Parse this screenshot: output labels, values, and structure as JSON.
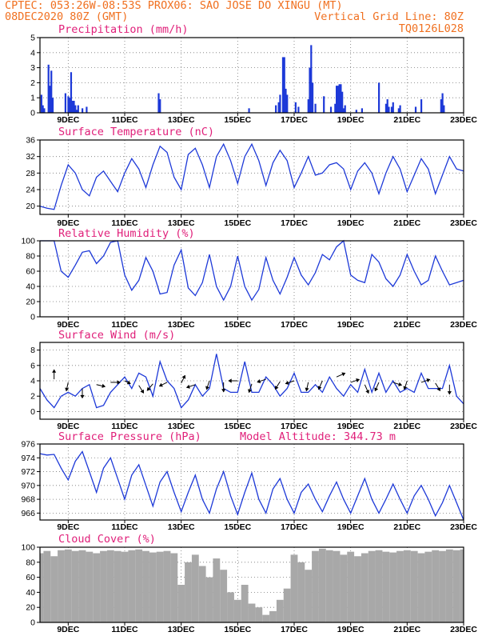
{
  "header": {
    "line1_left": "CPTEC:  053:26W-08:53S  PROX06: SAO JOSE DO XINGU (MT)",
    "line2_left": "08DEC2020 80Z (GMT)",
    "line2_right": "Vertical Grid Line: 80Z",
    "line3_right": "TQ0126L028"
  },
  "colors": {
    "header": "#f07020",
    "panel_title": "#e0207a",
    "line": "#1d39d8",
    "bar": "#1d39d8",
    "cloud": "#a8a8a8",
    "wind_arrow": "#000000"
  },
  "chart_data": [
    {
      "type": "bar",
      "title": "Precipitation (mm/h)",
      "x": [
        8.05,
        8.1,
        8.15,
        8.3,
        8.35,
        8.4,
        8.45,
        8.9,
        9.0,
        9.05,
        9.1,
        9.15,
        9.2,
        9.25,
        9.3,
        9.35,
        9.5,
        9.65,
        12.2,
        12.25,
        15.4,
        16.35,
        16.45,
        16.5,
        16.6,
        16.65,
        16.7,
        16.75,
        17.05,
        17.15,
        17.5,
        17.55,
        17.6,
        17.65,
        17.75,
        18.05,
        18.3,
        18.45,
        18.5,
        18.55,
        18.6,
        18.65,
        18.7,
        18.75,
        18.8,
        19.2,
        19.4,
        20.0,
        20.25,
        20.3,
        20.35,
        20.45,
        20.5,
        20.7,
        20.75,
        21.3,
        21.5,
        22.2,
        22.25,
        22.3
      ],
      "values": [
        1.2,
        0.5,
        0.3,
        3.2,
        1.8,
        2.8,
        1.0,
        1.3,
        1.1,
        1.0,
        2.7,
        0.8,
        0.8,
        0.5,
        0.2,
        0.5,
        0.3,
        0.4,
        1.3,
        0.9,
        0.3,
        0.5,
        0.7,
        1.2,
        3.7,
        3.7,
        1.6,
        1.2,
        0.7,
        0.4,
        0.9,
        3.0,
        4.5,
        2.0,
        0.6,
        1.1,
        0.4,
        0.6,
        1.8,
        1.8,
        1.9,
        1.9,
        1.4,
        0.3,
        0.5,
        0.2,
        0.3,
        2.0,
        0.6,
        0.9,
        0.4,
        0.4,
        0.7,
        0.3,
        0.5,
        0.4,
        0.9,
        0.9,
        1.3,
        0.5
      ],
      "ylim": [
        0,
        5
      ],
      "yticks": [
        0,
        1,
        2,
        3,
        4,
        5
      ]
    },
    {
      "type": "line",
      "title": "Surface Temperature (nC)",
      "x": [
        8.0,
        8.25,
        8.5,
        8.75,
        9.0,
        9.25,
        9.5,
        9.75,
        10.0,
        10.25,
        10.5,
        10.75,
        11.0,
        11.25,
        11.5,
        11.75,
        12.0,
        12.25,
        12.5,
        12.75,
        13.0,
        13.25,
        13.5,
        13.75,
        14.0,
        14.25,
        14.5,
        14.75,
        15.0,
        15.25,
        15.5,
        15.75,
        16.0,
        16.25,
        16.5,
        16.75,
        17.0,
        17.25,
        17.5,
        17.75,
        18.0,
        18.25,
        18.5,
        18.75,
        19.0,
        19.25,
        19.5,
        19.75,
        20.0,
        20.25,
        20.5,
        20.75,
        21.0,
        21.25,
        21.5,
        21.75,
        22.0,
        22.25,
        22.5,
        22.75,
        23.0
      ],
      "values": [
        20.0,
        19.5,
        19.2,
        25.0,
        30.0,
        28.0,
        24.0,
        22.5,
        27.0,
        28.5,
        26.0,
        23.5,
        28.0,
        31.5,
        29.0,
        24.5,
        30.0,
        34.5,
        33.0,
        27.0,
        24.0,
        32.5,
        34.0,
        30.0,
        24.5,
        32.0,
        35.0,
        31.0,
        25.5,
        32.0,
        35.0,
        31.0,
        25.0,
        30.5,
        33.5,
        31.0,
        24.5,
        28.0,
        32.0,
        27.5,
        28.0,
        30.0,
        30.5,
        29.0,
        24.0,
        28.5,
        30.5,
        28.0,
        23.0,
        28.0,
        32.0,
        29.0,
        23.5,
        27.5,
        31.5,
        29.0,
        23.0,
        27.5,
        32.0,
        29.0,
        28.5
      ],
      "ylim": [
        18,
        36
      ],
      "yticks": [
        20,
        24,
        28,
        32,
        36
      ]
    },
    {
      "type": "line",
      "title": "Relative Humidity (%)",
      "x": [
        8.0,
        8.25,
        8.5,
        8.75,
        9.0,
        9.25,
        9.5,
        9.75,
        10.0,
        10.25,
        10.5,
        10.75,
        11.0,
        11.25,
        11.5,
        11.75,
        12.0,
        12.25,
        12.5,
        12.75,
        13.0,
        13.25,
        13.5,
        13.75,
        14.0,
        14.25,
        14.5,
        14.75,
        15.0,
        15.25,
        15.5,
        15.75,
        16.0,
        16.25,
        16.5,
        16.75,
        17.0,
        17.25,
        17.5,
        17.75,
        18.0,
        18.25,
        18.5,
        18.75,
        19.0,
        19.25,
        19.5,
        19.75,
        20.0,
        20.25,
        20.5,
        20.75,
        21.0,
        21.25,
        21.5,
        21.75,
        22.0,
        22.25,
        22.5,
        22.75,
        23.0
      ],
      "values": [
        100,
        100,
        100,
        60,
        52,
        68,
        85,
        87,
        70,
        80,
        98,
        100,
        55,
        35,
        48,
        78,
        60,
        30,
        32,
        68,
        88,
        38,
        28,
        45,
        82,
        40,
        22,
        40,
        80,
        40,
        22,
        36,
        78,
        48,
        30,
        52,
        78,
        55,
        42,
        58,
        82,
        75,
        92,
        100,
        55,
        48,
        45,
        82,
        72,
        50,
        40,
        55,
        82,
        60,
        42,
        48,
        80,
        60,
        42,
        45,
        48
      ],
      "ylim": [
        0,
        100
      ],
      "yticks": [
        0,
        20,
        40,
        60,
        80,
        100
      ]
    },
    {
      "type": "line",
      "title": "Surface Wind (m/s)",
      "x": [
        8.0,
        8.25,
        8.5,
        8.75,
        9.0,
        9.25,
        9.5,
        9.75,
        10.0,
        10.25,
        10.5,
        10.75,
        11.0,
        11.25,
        11.5,
        11.75,
        12.0,
        12.25,
        12.5,
        12.75,
        13.0,
        13.25,
        13.5,
        13.75,
        14.0,
        14.25,
        14.5,
        14.75,
        15.0,
        15.25,
        15.5,
        15.75,
        16.0,
        16.25,
        16.5,
        16.75,
        17.0,
        17.25,
        17.5,
        17.75,
        18.0,
        18.25,
        18.5,
        18.75,
        19.0,
        19.25,
        19.5,
        19.75,
        20.0,
        20.25,
        20.5,
        20.75,
        21.0,
        21.25,
        21.5,
        21.75,
        22.0,
        22.25,
        22.5,
        22.75,
        23.0
      ],
      "values": [
        3.0,
        1.5,
        0.5,
        2.0,
        2.5,
        2.0,
        3.0,
        3.5,
        0.5,
        0.8,
        2.5,
        3.5,
        4.5,
        3.0,
        5.0,
        4.5,
        2.0,
        6.5,
        4.0,
        3.0,
        0.5,
        1.5,
        3.5,
        2.0,
        3.0,
        7.5,
        3.0,
        2.5,
        2.5,
        6.5,
        2.5,
        2.5,
        4.5,
        3.5,
        2.0,
        3.0,
        5.0,
        2.5,
        2.5,
        3.5,
        2.5,
        4.5,
        3.0,
        2.0,
        3.5,
        2.5,
        5.5,
        2.5,
        5.0,
        2.5,
        4.0,
        2.5,
        3.0,
        2.5,
        5.0,
        3.0,
        3.0,
        3.0,
        6.0,
        2.0,
        1.0
      ],
      "ylim": [
        -1,
        9
      ],
      "yticks": [
        0,
        2,
        4,
        6,
        8
      ],
      "wind_vectors": [
        {
          "x": 8.5,
          "y": 4.2,
          "u": 0,
          "v": 1
        },
        {
          "x": 9.0,
          "y": 3.8,
          "u": -0.2,
          "v": -0.9
        },
        {
          "x": 9.5,
          "y": 3.0,
          "u": 0,
          "v": -1
        },
        {
          "x": 10.0,
          "y": 3.5,
          "u": 0.9,
          "v": -0.2
        },
        {
          "x": 10.5,
          "y": 3.8,
          "u": 1,
          "v": 0
        },
        {
          "x": 11.0,
          "y": 4.0,
          "u": 0.6,
          "v": -0.3
        },
        {
          "x": 11.5,
          "y": 3.4,
          "u": 0.5,
          "v": -0.8
        },
        {
          "x": 12.0,
          "y": 3.6,
          "u": -0.6,
          "v": -0.7
        },
        {
          "x": 12.5,
          "y": 3.8,
          "u": -0.8,
          "v": -0.4
        },
        {
          "x": 13.0,
          "y": 3.7,
          "u": 0.4,
          "v": 0.8
        },
        {
          "x": 13.5,
          "y": 3.5,
          "u": -0.9,
          "v": -0.3
        },
        {
          "x": 14.0,
          "y": 4.0,
          "u": -0.3,
          "v": -0.9
        },
        {
          "x": 14.5,
          "y": 3.8,
          "u": 0,
          "v": -1
        },
        {
          "x": 15.0,
          "y": 4.0,
          "u": -0.95,
          "v": 0
        },
        {
          "x": 15.5,
          "y": 3.6,
          "u": -0.3,
          "v": -0.9
        },
        {
          "x": 16.0,
          "y": 4.2,
          "u": -0.9,
          "v": -0.3
        },
        {
          "x": 16.5,
          "y": 3.9,
          "u": -0.5,
          "v": -0.8
        },
        {
          "x": 17.0,
          "y": 4.0,
          "u": -0.9,
          "v": -0.3
        },
        {
          "x": 17.5,
          "y": 3.8,
          "u": -0.2,
          "v": -0.9
        },
        {
          "x": 18.0,
          "y": 4.0,
          "u": -0.4,
          "v": -0.9
        },
        {
          "x": 18.5,
          "y": 4.5,
          "u": 0.9,
          "v": 0.4
        },
        {
          "x": 19.0,
          "y": 3.8,
          "u": 0.9,
          "v": 0.3
        },
        {
          "x": 19.5,
          "y": 3.5,
          "u": 0.4,
          "v": -0.9
        },
        {
          "x": 20.0,
          "y": 3.8,
          "u": -0.4,
          "v": -0.9
        },
        {
          "x": 20.5,
          "y": 3.8,
          "u": 0.9,
          "v": -0.3
        },
        {
          "x": 21.0,
          "y": 4.0,
          "u": -0.3,
          "v": -0.9
        },
        {
          "x": 21.5,
          "y": 3.8,
          "u": 0.9,
          "v": 0.3
        },
        {
          "x": 22.0,
          "y": 3.7,
          "u": 0.5,
          "v": -0.8
        },
        {
          "x": 22.5,
          "y": 3.5,
          "u": 0,
          "v": -1
        }
      ]
    },
    {
      "type": "line",
      "title": "Surface Pressure (hPa)",
      "annotation": "Model Altitude: 344.73 m",
      "x": [
        8.0,
        8.25,
        8.5,
        8.75,
        9.0,
        9.25,
        9.5,
        9.75,
        10.0,
        10.25,
        10.5,
        10.75,
        11.0,
        11.25,
        11.5,
        11.75,
        12.0,
        12.25,
        12.5,
        12.75,
        13.0,
        13.25,
        13.5,
        13.75,
        14.0,
        14.25,
        14.5,
        14.75,
        15.0,
        15.25,
        15.5,
        15.75,
        16.0,
        16.25,
        16.5,
        16.75,
        17.0,
        17.25,
        17.5,
        17.75,
        18.0,
        18.25,
        18.5,
        18.75,
        19.0,
        19.25,
        19.5,
        19.75,
        20.0,
        20.25,
        20.5,
        20.75,
        21.0,
        21.25,
        21.5,
        21.75,
        22.0,
        22.25,
        22.5,
        22.75,
        23.0
      ],
      "values": [
        974.6,
        974.4,
        974.5,
        972.5,
        970.8,
        973.5,
        974.9,
        972.0,
        969.0,
        972.5,
        974.0,
        971.0,
        968.0,
        971.5,
        973.0,
        970.0,
        967.0,
        970.5,
        972.0,
        969.0,
        966.2,
        969.0,
        971.5,
        968.0,
        966.0,
        969.5,
        972.0,
        968.5,
        965.8,
        969.0,
        971.8,
        968.0,
        966.0,
        969.5,
        971.0,
        968.0,
        966.0,
        969.0,
        970.2,
        968.0,
        966.2,
        968.5,
        970.5,
        968.0,
        966.0,
        968.5,
        971.0,
        968.0,
        966.0,
        968.0,
        970.2,
        968.0,
        966.0,
        968.5,
        970.0,
        968.0,
        965.6,
        967.5,
        970.0,
        967.5,
        965.0
      ],
      "ylim": [
        965,
        976
      ],
      "yticks": [
        966,
        968,
        970,
        972,
        974,
        976
      ]
    },
    {
      "type": "bar",
      "title": "Cloud Cover (%)",
      "x": [
        8.0,
        8.25,
        8.5,
        8.75,
        9.0,
        9.25,
        9.5,
        9.75,
        10.0,
        10.25,
        10.5,
        10.75,
        11.0,
        11.25,
        11.5,
        11.75,
        12.0,
        12.25,
        12.5,
        12.75,
        13.0,
        13.25,
        13.5,
        13.75,
        14.0,
        14.25,
        14.5,
        14.75,
        15.0,
        15.25,
        15.5,
        15.75,
        16.0,
        16.25,
        16.5,
        16.75,
        17.0,
        17.25,
        17.5,
        17.75,
        18.0,
        18.25,
        18.5,
        18.75,
        19.0,
        19.25,
        19.5,
        19.75,
        20.0,
        20.25,
        20.5,
        20.75,
        21.0,
        21.25,
        21.5,
        21.75,
        22.0,
        22.25,
        22.5,
        22.75,
        23.0
      ],
      "values": [
        92,
        95,
        88,
        96,
        97,
        95,
        96,
        94,
        92,
        95,
        96,
        95,
        94,
        96,
        97,
        95,
        93,
        94,
        95,
        92,
        50,
        80,
        90,
        75,
        60,
        85,
        70,
        40,
        30,
        50,
        25,
        20,
        10,
        15,
        30,
        45,
        90,
        80,
        70,
        95,
        98,
        96,
        95,
        90,
        94,
        88,
        92,
        95,
        96,
        94,
        93,
        95,
        96,
        95,
        92,
        94,
        96,
        95,
        97,
        96,
        97
      ],
      "ylim": [
        0,
        100
      ],
      "yticks": [
        0,
        20,
        40,
        60,
        80,
        100
      ]
    }
  ],
  "x_axis": {
    "tick_days": [
      9,
      11,
      13,
      15,
      17,
      19,
      21,
      23
    ],
    "tick_labels": [
      "9DEC",
      "11DEC",
      "13DEC",
      "15DEC",
      "17DEC",
      "19DEC",
      "21DEC",
      "23DEC"
    ]
  }
}
